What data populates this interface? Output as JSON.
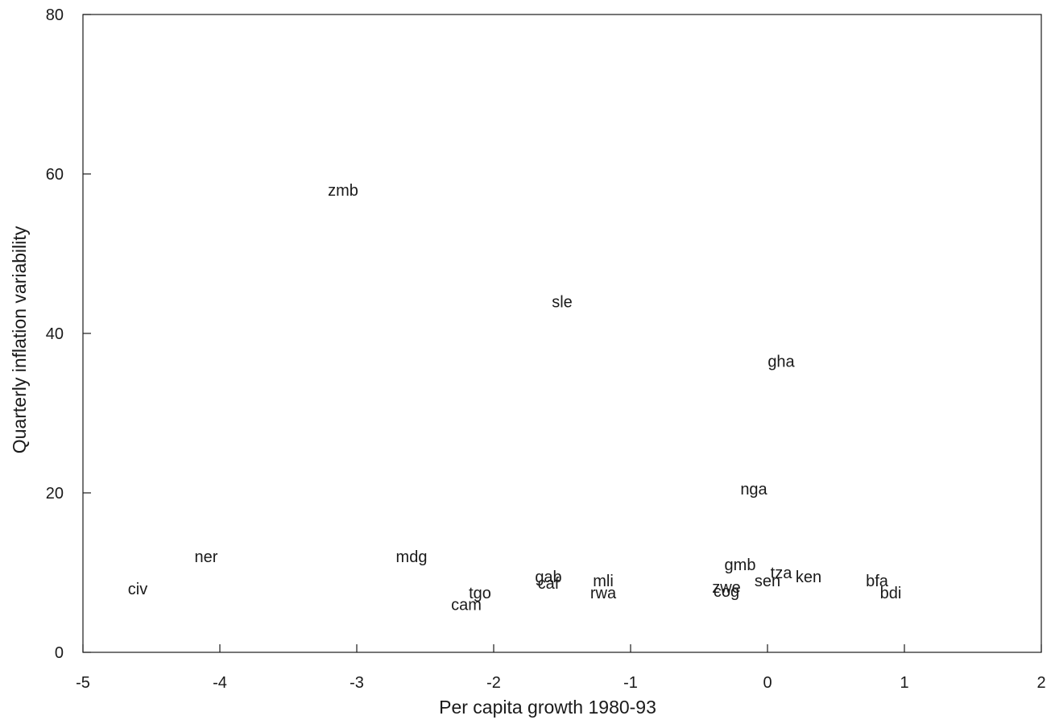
{
  "chart_data": {
    "type": "scatter",
    "title": "",
    "xlabel": "Per capita growth 1980-93",
    "ylabel": "Quarterly inflation variability",
    "xlim": [
      -5,
      2
    ],
    "ylim": [
      0,
      80
    ],
    "x_ticks": [
      -5,
      -4,
      -3,
      -2,
      -1,
      0,
      1,
      2
    ],
    "x_tick_labels": [
      "-5",
      "-4",
      "-3",
      "-2",
      "-1",
      "0",
      "1",
      "2"
    ],
    "y_ticks": [
      0,
      20,
      40,
      60,
      80
    ],
    "y_tick_labels": [
      "0",
      "20",
      "40",
      "60",
      "80"
    ],
    "grid": false,
    "marker": "text-label",
    "points": [
      {
        "label": "zmb",
        "x": -3.1,
        "y": 58.0
      },
      {
        "label": "sle",
        "x": -1.5,
        "y": 44.0
      },
      {
        "label": "gha",
        "x": 0.1,
        "y": 36.5
      },
      {
        "label": "nga",
        "x": -0.1,
        "y": 20.5
      },
      {
        "label": "ner",
        "x": -4.1,
        "y": 12.0
      },
      {
        "label": "mdg",
        "x": -2.6,
        "y": 12.0
      },
      {
        "label": "civ",
        "x": -4.6,
        "y": 8.0
      },
      {
        "label": "gmb",
        "x": -0.2,
        "y": 11.0
      },
      {
        "label": "tza",
        "x": 0.1,
        "y": 10.0
      },
      {
        "label": "ken",
        "x": 0.3,
        "y": 9.5
      },
      {
        "label": "sen",
        "x": 0.0,
        "y": 9.0
      },
      {
        "label": "bfa",
        "x": 0.8,
        "y": 9.0
      },
      {
        "label": "bdi",
        "x": 0.9,
        "y": 7.5
      },
      {
        "label": "gab",
        "x": -1.6,
        "y": 9.5
      },
      {
        "label": "caf",
        "x": -1.6,
        "y": 8.7
      },
      {
        "label": "mli",
        "x": -1.2,
        "y": 9.0
      },
      {
        "label": "rwa",
        "x": -1.2,
        "y": 7.5
      },
      {
        "label": "tgo",
        "x": -2.1,
        "y": 7.5
      },
      {
        "label": "cam",
        "x": -2.2,
        "y": 6.0
      },
      {
        "label": "zwe",
        "x": -0.3,
        "y": 8.2
      },
      {
        "label": "cog",
        "x": -0.3,
        "y": 7.7
      }
    ]
  }
}
